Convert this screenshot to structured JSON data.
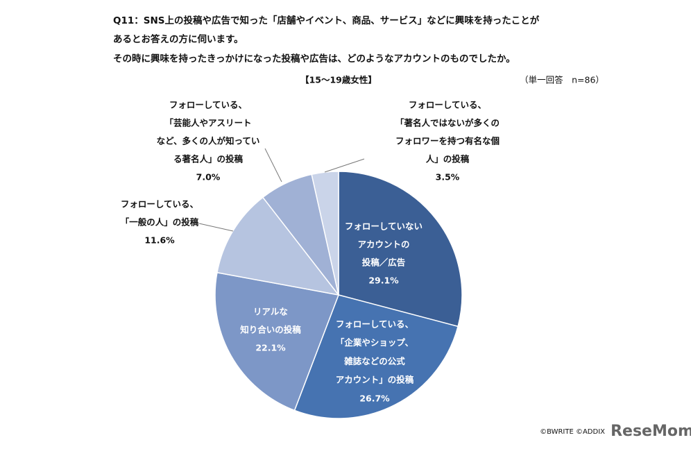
{
  "chart_data": {
    "type": "pie",
    "title": [
      "Q11：SNS上の投稿や広告で知った「店舗やイベント、商品、サービス」などに興味を持ったことが",
      "あるとお答えの方に伺います。",
      "その時に興味を持ったきっかけになった投稿や広告は、どのようなアカウントのものでしたか。"
    ],
    "subtitle": "【15～19歳女性】",
    "note": "（単一回答　n=86）",
    "categories": [
      [
        "フォローしていない",
        "アカウントの",
        "投稿／広告"
      ],
      [
        "フォローしている、",
        "「企業やショップ、",
        "雑誌などの公式",
        "アカウント」の投稿"
      ],
      [
        "リアルな",
        "知り合いの投稿"
      ],
      [
        "フォローしている、",
        "「一般の人」の投稿"
      ],
      [
        "フォローしている、",
        "「芸能人やアスリート",
        "など、多くの人が知ってい",
        "る著名人」の投稿"
      ],
      [
        "フォローしている、",
        "「著名人ではないが多くの",
        "フォロワーを持つ有名な個",
        "人」の投稿"
      ]
    ],
    "values": [
      29.1,
      26.7,
      22.1,
      11.6,
      7.0,
      3.5
    ],
    "value_labels": [
      "29.1%",
      "26.7%",
      "22.1%",
      "11.6%",
      "7.0%",
      "3.5%"
    ],
    "colors": [
      "#3b5f95",
      "#4673b1",
      "#7d97c7",
      "#b6c4e0",
      "#a0b1d5",
      "#cad4e9"
    ],
    "source": "©BWRITE ©ADDIX",
    "logo": "ReseMom"
  }
}
